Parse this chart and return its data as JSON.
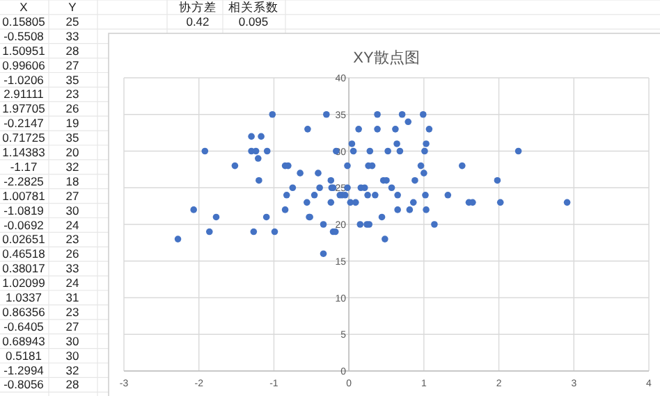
{
  "chart_data": {
    "type": "scatter",
    "title": "XY散点图",
    "x": [
      -2.28,
      -2.07,
      -1.92,
      -1.86,
      -1.77,
      -1.52,
      -1.3,
      -1.3,
      -1.27,
      -1.24,
      -1.21,
      -1.2,
      -1.17,
      -1.09,
      -1.1,
      -1.02,
      -0.99,
      -0.85,
      -0.85,
      -0.81,
      -0.83,
      -0.75,
      -0.65,
      -0.55,
      -0.56,
      -0.53,
      -0.52,
      -0.46,
      -0.41,
      -0.39,
      -0.34,
      -0.34,
      -0.3,
      -0.24,
      -0.24,
      -0.23,
      -0.21,
      -0.21,
      -0.18,
      -0.17,
      -0.12,
      -0.09,
      -0.05,
      -0.02,
      -0.02,
      0.02,
      0.04,
      0.06,
      0.09,
      0.13,
      0.15,
      0.16,
      0.21,
      0.24,
      0.25,
      0.26,
      0.27,
      0.28,
      0.31,
      0.35,
      0.38,
      0.38,
      0.44,
      0.46,
      0.48,
      0.5,
      0.52,
      0.57,
      0.62,
      0.64,
      0.65,
      0.65,
      0.68,
      0.71,
      0.79,
      0.81,
      0.86,
      0.88,
      0.96,
      0.99,
      1.0,
      1.01,
      1.02,
      1.03,
      1.03,
      1.07,
      1.14,
      1.32,
      1.51,
      1.6,
      1.65,
      1.98,
      2.02,
      2.26,
      2.91
    ],
    "values": [
      18,
      22,
      30,
      19,
      21,
      28,
      32,
      30,
      19,
      30,
      29,
      26,
      32,
      30,
      21,
      35,
      19,
      22,
      28,
      28,
      24,
      25,
      27,
      33,
      23,
      21,
      21,
      24,
      27,
      25,
      20,
      16,
      35,
      26,
      23,
      25,
      25,
      19,
      19,
      30,
      24,
      24,
      24,
      25,
      28,
      23,
      31,
      30,
      23,
      33,
      20,
      25,
      25,
      20,
      24,
      28,
      20,
      30,
      28,
      24,
      35,
      33,
      21,
      26,
      18,
      26,
      30,
      25,
      33,
      31,
      24,
      22,
      30,
      35,
      34,
      22,
      23,
      26,
      28,
      35,
      27,
      30,
      24,
      22,
      31,
      33,
      20,
      24,
      28,
      23,
      23,
      26,
      23,
      30,
      23
    ],
    "color": "#4472c4",
    "marker": "circle",
    "xlim": [
      -3,
      4
    ],
    "xticks": [
      -3,
      -2,
      -1,
      0,
      1,
      2,
      3,
      4
    ],
    "ylim": [
      0,
      40
    ],
    "yticks": [
      0,
      5,
      10,
      15,
      20,
      25,
      30,
      35,
      40
    ],
    "grid": true,
    "annotations": [
      "协方差",
      "相关系数",
      "0.42",
      "0.095",
      "X",
      "Y",
      "0.15805",
      "25",
      "-0.5508",
      "33",
      "1.50951",
      "28",
      "0.99606",
      "27",
      "-1.0206",
      "35",
      "2.91111",
      "23",
      "1.97705",
      "26",
      "-0.2147",
      "19",
      "0.71725",
      "35",
      "1.14383",
      "20",
      "-1.17",
      "32",
      "-2.2825",
      "18",
      "1.00781",
      "27",
      "-1.0819",
      "30",
      "-0.0692",
      "24",
      "0.02651",
      "23",
      "0.46518",
      "26",
      "0.38017",
      "33",
      "1.02099",
      "24",
      "1.0337",
      "31",
      "0.86356",
      "23",
      "-0.6405",
      "27",
      "0.68943",
      "30",
      "0.5181",
      "30",
      "-1.2994",
      "32",
      "-0.8056",
      "28"
    ]
  }
}
